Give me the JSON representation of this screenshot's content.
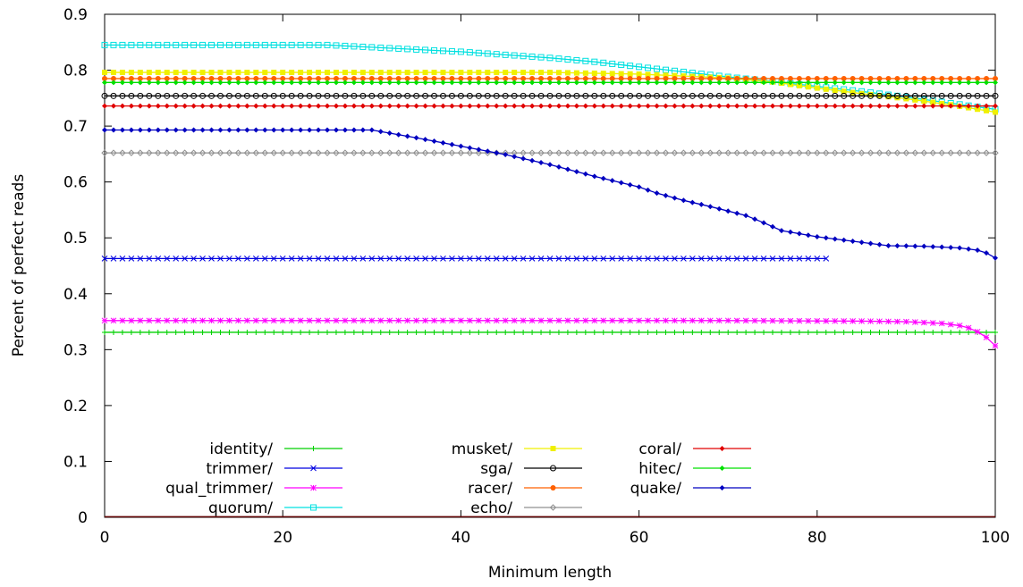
{
  "chart_data": {
    "type": "line",
    "title": "",
    "xlabel": "Minimum length",
    "ylabel": "Percent of perfect reads",
    "xlim": [
      0,
      100
    ],
    "ylim": [
      0,
      0.9
    ],
    "xticks": [
      0,
      20,
      40,
      60,
      80,
      100
    ],
    "yticks": [
      0,
      0.1,
      0.2,
      0.3,
      0.4,
      0.5,
      0.6,
      0.7,
      0.8,
      0.9
    ],
    "grid": false,
    "legend": "bottom-left",
    "series": [
      {
        "name": "identity/",
        "color": "#00d000",
        "marker": "plus",
        "points": [
          [
            0,
            0.331
          ],
          [
            100,
            0.331
          ]
        ]
      },
      {
        "name": "trimmer/",
        "color": "#0000e0",
        "marker": "cross",
        "points": [
          [
            0,
            0.463
          ],
          [
            81,
            0.463
          ]
        ]
      },
      {
        "name": "qual_trimmer/",
        "color": "#ff00ff",
        "marker": "star",
        "points": [
          [
            0,
            0.352
          ],
          [
            70,
            0.352
          ],
          [
            85,
            0.351
          ],
          [
            90,
            0.35
          ],
          [
            94,
            0.347
          ],
          [
            96,
            0.343
          ],
          [
            97,
            0.339
          ],
          [
            98,
            0.332
          ],
          [
            99,
            0.322
          ],
          [
            100,
            0.307
          ]
        ]
      },
      {
        "name": "quorum/",
        "color": "#00e0e0",
        "marker": "square",
        "points": [
          [
            0,
            0.845
          ],
          [
            25,
            0.845
          ],
          [
            30,
            0.841
          ],
          [
            40,
            0.833
          ],
          [
            50,
            0.822
          ],
          [
            55,
            0.815
          ],
          [
            60,
            0.806
          ],
          [
            65,
            0.797
          ],
          [
            70,
            0.788
          ],
          [
            75,
            0.78
          ],
          [
            80,
            0.771
          ],
          [
            85,
            0.762
          ],
          [
            90,
            0.752
          ],
          [
            95,
            0.741
          ],
          [
            100,
            0.73
          ]
        ]
      },
      {
        "name": "musket/",
        "color": "#f0f000",
        "marker": "filled-square",
        "points": [
          [
            0,
            0.796
          ],
          [
            50,
            0.796
          ],
          [
            60,
            0.793
          ],
          [
            70,
            0.786
          ],
          [
            75,
            0.779
          ],
          [
            80,
            0.768
          ],
          [
            85,
            0.758
          ],
          [
            90,
            0.749
          ],
          [
            95,
            0.738
          ],
          [
            100,
            0.725
          ]
        ]
      },
      {
        "name": "sga/",
        "color": "#000000",
        "marker": "circle",
        "points": [
          [
            0,
            0.754
          ],
          [
            100,
            0.754
          ]
        ]
      },
      {
        "name": "racer/",
        "color": "#ff6000",
        "marker": "filled-circle",
        "points": [
          [
            0,
            0.785
          ],
          [
            100,
            0.785
          ]
        ]
      },
      {
        "name": "echo/",
        "color": "#909090",
        "marker": "diamond",
        "points": [
          [
            0,
            0.652
          ],
          [
            100,
            0.652
          ]
        ]
      },
      {
        "name": "coral/",
        "color": "#e00000",
        "marker": "filled-diamond",
        "points": [
          [
            0,
            0.736
          ],
          [
            100,
            0.736
          ]
        ]
      },
      {
        "name": "hitec/",
        "color": "#00e000",
        "marker": "filled-diamond",
        "points": [
          [
            0,
            0.778
          ],
          [
            100,
            0.778
          ]
        ]
      },
      {
        "name": "quake/",
        "color": "#0000c0",
        "marker": "filled-diamond",
        "points": [
          [
            0,
            0.693
          ],
          [
            30,
            0.693
          ],
          [
            35,
            0.679
          ],
          [
            40,
            0.664
          ],
          [
            45,
            0.649
          ],
          [
            50,
            0.631
          ],
          [
            55,
            0.61
          ],
          [
            60,
            0.591
          ],
          [
            62,
            0.58
          ],
          [
            65,
            0.567
          ],
          [
            68,
            0.556
          ],
          [
            72,
            0.54
          ],
          [
            74,
            0.527
          ],
          [
            76,
            0.513
          ],
          [
            80,
            0.502
          ],
          [
            85,
            0.492
          ],
          [
            88,
            0.486
          ],
          [
            92,
            0.485
          ],
          [
            96,
            0.482
          ],
          [
            98,
            0.478
          ],
          [
            99,
            0.473
          ],
          [
            100,
            0.464
          ]
        ]
      },
      {
        "name": "",
        "color": "#600000",
        "marker": "none",
        "points": [
          [
            0,
            0.001
          ],
          [
            100,
            0.001
          ]
        ]
      }
    ]
  }
}
